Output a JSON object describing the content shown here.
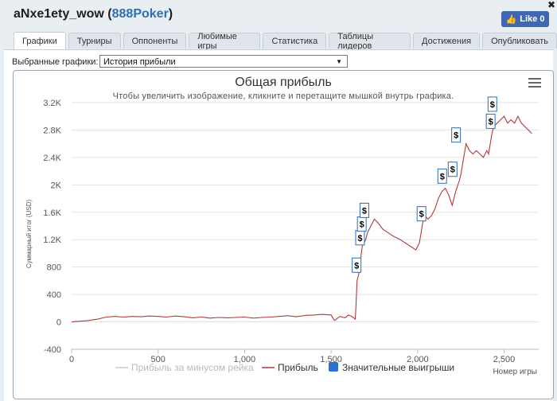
{
  "header": {
    "player": "aNxe1ety_wow",
    "open_paren": " (",
    "network": "888Poker",
    "close_paren": ")",
    "close_symbol": "✖",
    "like_label": "Like 0"
  },
  "tabs": [
    {
      "label": "Графики",
      "active": true
    },
    {
      "label": "Турниры",
      "active": false
    },
    {
      "label": "Оппоненты",
      "active": false
    },
    {
      "label": "Любимые игры",
      "active": false
    },
    {
      "label": "Статистика",
      "active": false
    },
    {
      "label": "Таблицы лидеров",
      "active": false
    },
    {
      "label": "Достижения",
      "active": false
    },
    {
      "label": "Опубликовать",
      "active": false
    }
  ],
  "selector": {
    "label": "Выбранные графики:",
    "value": "История прибыли"
  },
  "colors": {
    "profit_line": "#b03a3a",
    "rake_line": "#cccccc",
    "flag_border": "#2a6db5",
    "legend_marker": "#2e6fd1"
  },
  "chart_data": {
    "type": "line",
    "title": "Общая прибыль",
    "subtitle": "Чтобы увеличить изображение, кликните и перетащите мышкой внутрь графика.",
    "ylabel": "Суммарный итог (USD)",
    "xlabel": "Номер игры",
    "xlim": [
      0,
      2700
    ],
    "ylim": [
      -400,
      3200
    ],
    "x_ticks": [
      0,
      500,
      1000,
      1500,
      2000,
      2500
    ],
    "x_tick_labels": [
      "0",
      "500",
      "1,000",
      "1,500",
      "2,000",
      "2,500"
    ],
    "y_ticks": [
      -400,
      0,
      400,
      800,
      1200,
      1600,
      2000,
      2400,
      2800,
      3200
    ],
    "y_tick_labels": [
      "-400",
      "0",
      "400",
      "800",
      "1.2K",
      "1.6K",
      "2K",
      "2.4K",
      "2.8K",
      "3.2K"
    ],
    "legend": [
      "Прибыль за минусом рейка",
      "Прибыль",
      "Значительные выигрыши"
    ],
    "legend_placement": "bottom",
    "grid": "horizontal",
    "series": [
      {
        "name": "Прибыль",
        "x": [
          0,
          50,
          100,
          150,
          200,
          250,
          300,
          350,
          400,
          450,
          500,
          550,
          600,
          650,
          700,
          750,
          800,
          850,
          900,
          950,
          1000,
          1050,
          1100,
          1150,
          1200,
          1250,
          1300,
          1350,
          1400,
          1450,
          1500,
          1520,
          1550,
          1580,
          1600,
          1620,
          1640,
          1645,
          1650,
          1660,
          1670,
          1680,
          1690,
          1700,
          1710,
          1720,
          1730,
          1750,
          1770,
          1800,
          1830,
          1860,
          1900,
          1930,
          1960,
          1990,
          2000,
          2010,
          2020,
          2030,
          2040,
          2060,
          2080,
          2100,
          2120,
          2140,
          2160,
          2170,
          2180,
          2200,
          2220,
          2240,
          2250,
          2260,
          2270,
          2280,
          2300,
          2320,
          2340,
          2360,
          2380,
          2400,
          2410,
          2420,
          2430,
          2440,
          2460,
          2480,
          2500,
          2520,
          2540,
          2560,
          2580,
          2600,
          2620,
          2640,
          2660
        ],
        "y": [
          0,
          10,
          20,
          40,
          70,
          80,
          70,
          80,
          75,
          85,
          80,
          70,
          85,
          75,
          60,
          70,
          55,
          65,
          60,
          65,
          70,
          55,
          65,
          70,
          80,
          90,
          75,
          95,
          100,
          110,
          100,
          20,
          80,
          60,
          100,
          80,
          40,
          300,
          600,
          700,
          900,
          1100,
          1150,
          1200,
          1300,
          1350,
          1400,
          1500,
          1450,
          1350,
          1300,
          1250,
          1200,
          1150,
          1100,
          1050,
          1100,
          1150,
          1300,
          1450,
          1550,
          1500,
          1550,
          1650,
          1800,
          1900,
          1950,
          1900,
          1850,
          1700,
          1900,
          2050,
          2150,
          2300,
          2450,
          2600,
          2500,
          2450,
          2500,
          2450,
          2400,
          2500,
          2450,
          2600,
          2750,
          2850,
          2900,
          2950,
          3000,
          2900,
          2950,
          2900,
          3000,
          2900,
          2850,
          2800,
          2750
        ]
      },
      {
        "name": "Значительные выигрыши",
        "x": [
          1645,
          1665,
          1675,
          1690,
          2020,
          2140,
          2200,
          2220,
          2420,
          2430
        ],
        "y": [
          700,
          1100,
          1300,
          1500,
          1450,
          2000,
          2100,
          2600,
          2800,
          3050
        ]
      }
    ]
  }
}
